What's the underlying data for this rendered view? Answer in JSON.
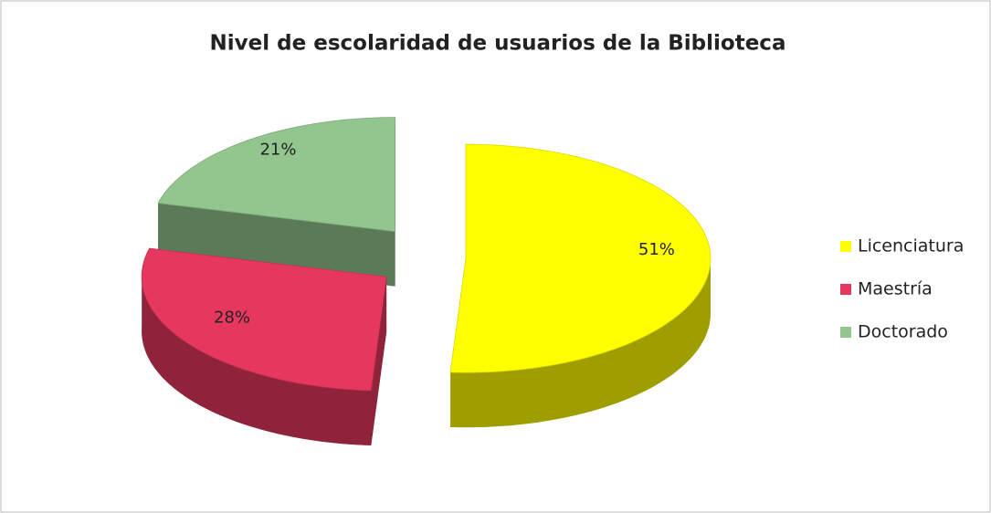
{
  "chart_data": {
    "type": "pie3d",
    "title": "Nivel de escolaridad de usuarios de la Biblioteca",
    "categories": [
      "Licenciatura",
      "Maestría",
      "Doctorado"
    ],
    "values": [
      51,
      28,
      21
    ],
    "value_labels": [
      "51%",
      "28%",
      "21%"
    ],
    "colors": [
      "#ffff00",
      "#e6385f",
      "#93c68e"
    ],
    "legend": "right"
  }
}
